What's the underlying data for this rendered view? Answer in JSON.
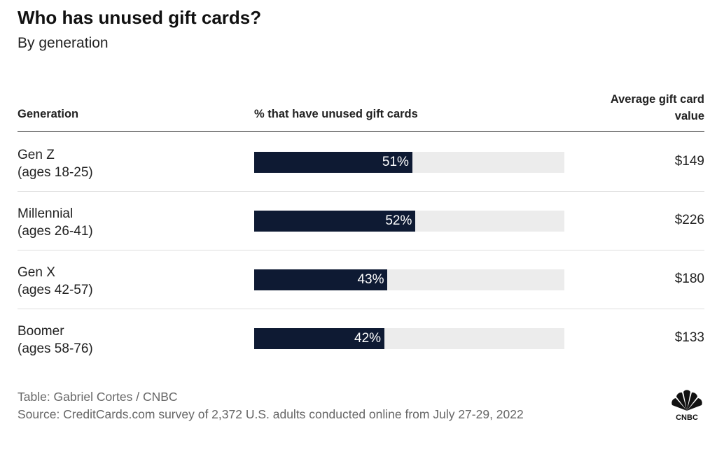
{
  "title": "Who has unused gift cards?",
  "subtitle": "By generation",
  "columns": {
    "generation": "Generation",
    "percent": "% that have unused gift cards",
    "value_line1": "Average gift card",
    "value_line2": "value"
  },
  "chart_data": {
    "type": "table",
    "bar_max": 100,
    "bar_color": "#0e1a33",
    "track_color": "#ececec",
    "rows": [
      {
        "generation": "Gen Z",
        "ages": "(ages 18-25)",
        "percent": 51,
        "percent_label": "51%",
        "value": "$149"
      },
      {
        "generation": "Millennial",
        "ages": "(ages 26-41)",
        "percent": 52,
        "percent_label": "52%",
        "value": "$226"
      },
      {
        "generation": "Gen X",
        "ages": "(ages 42-57)",
        "percent": 43,
        "percent_label": "43%",
        "value": "$180"
      },
      {
        "generation": "Boomer",
        "ages": "(ages 58-76)",
        "percent": 42,
        "percent_label": "42%",
        "value": "$133"
      }
    ]
  },
  "footer": {
    "credit": "Table: Gabriel Cortes / CNBC",
    "source": "Source: CreditCards.com survey of 2,372 U.S. adults conducted online from July 27-29, 2022",
    "logo": "CNBC"
  }
}
